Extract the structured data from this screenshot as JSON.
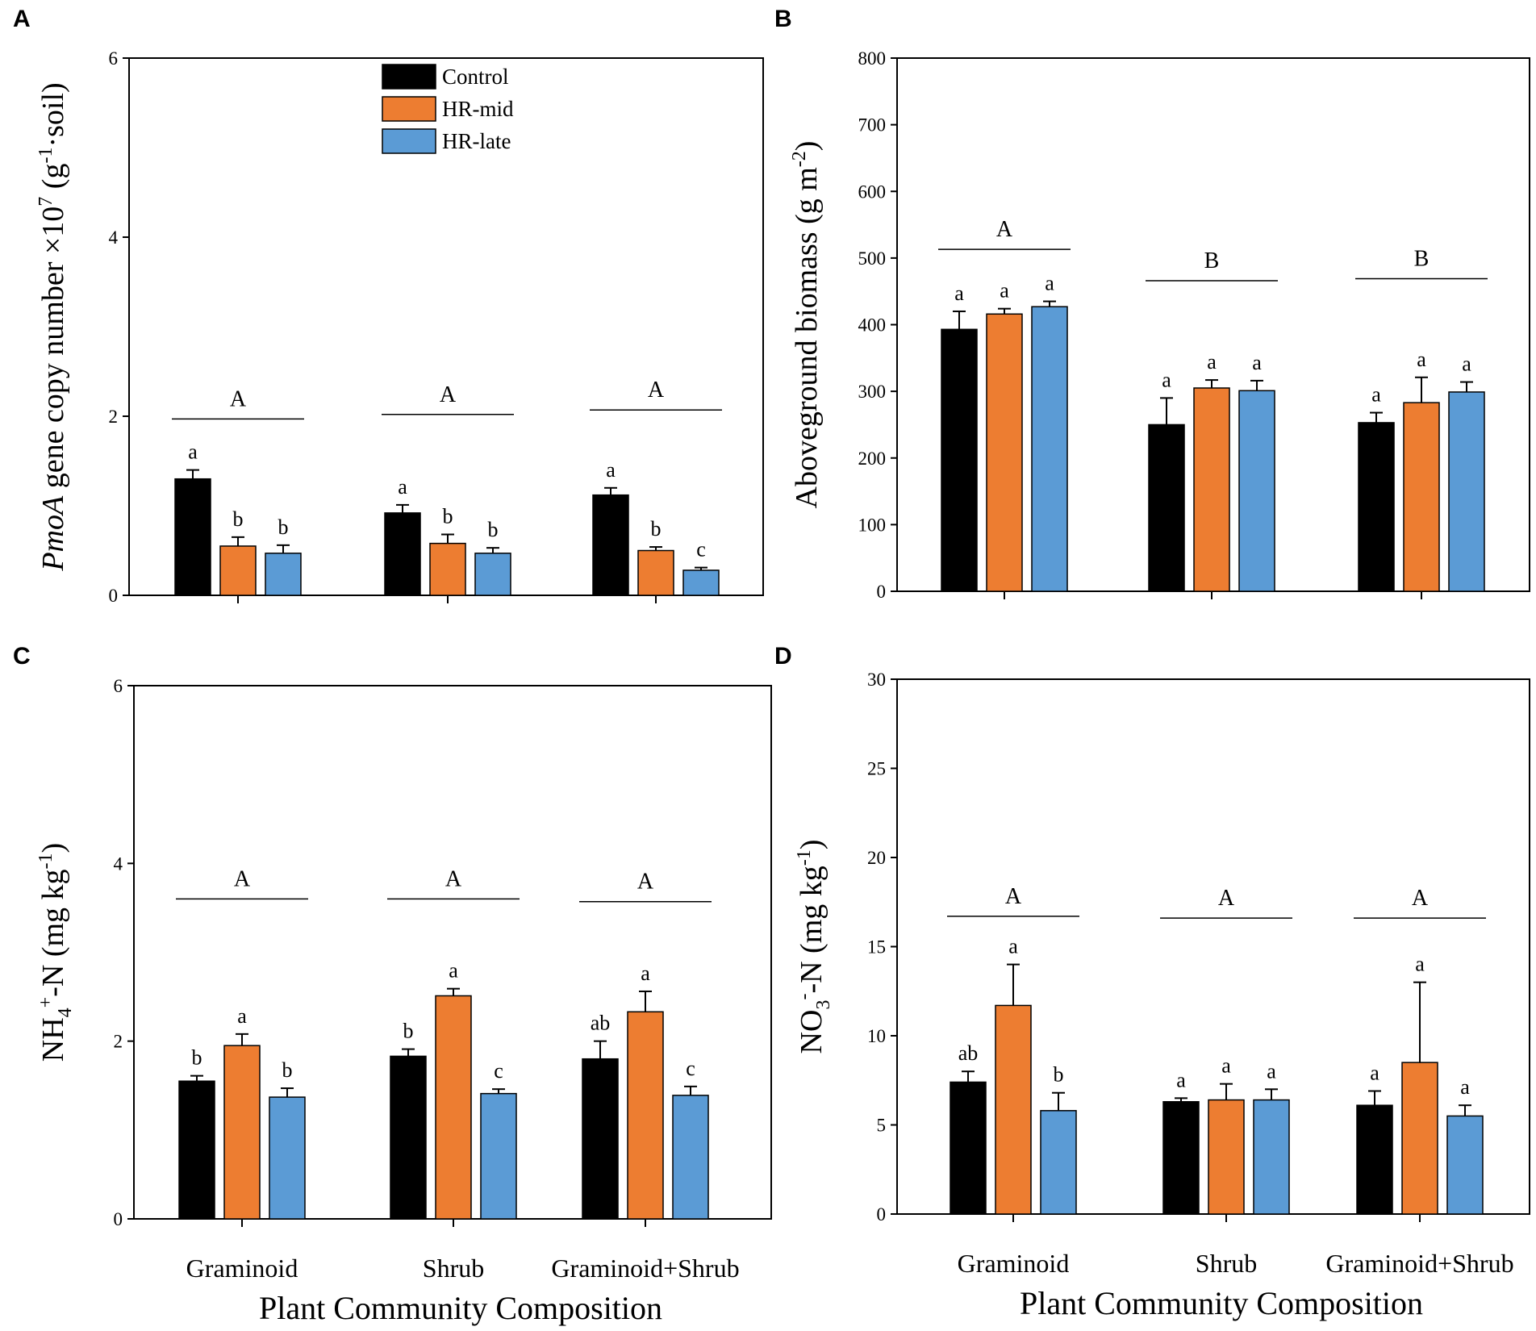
{
  "figure": {
    "legend": [
      {
        "label": "Control",
        "color": "#000000"
      },
      {
        "label": "HR-mid",
        "color": "#ED7D31"
      },
      {
        "label": "HR-late",
        "color": "#5B9BD5"
      }
    ],
    "x_axis_title": "Plant Community Composition"
  },
  "chart_data": [
    {
      "panel": "A",
      "type": "bar",
      "ylabel_parts": {
        "italic": "PmoA",
        "text1": " gene copy number ×10",
        "sup1": "7",
        "text2": " (g",
        "sup2": "-1",
        "text3": "·soil)"
      },
      "ylim": [
        0,
        6
      ],
      "yticks": [
        "0",
        "2",
        "4",
        "6"
      ],
      "categories": [
        "Graminoid",
        "Shrub",
        "Graminoid+Shrub"
      ],
      "series": [
        {
          "name": "Control",
          "values": [
            1.3,
            0.92,
            1.12
          ],
          "errors": [
            0.1,
            0.09,
            0.08
          ],
          "letters": [
            "a",
            "a",
            "a"
          ]
        },
        {
          "name": "HR-mid",
          "values": [
            0.55,
            0.58,
            0.5
          ],
          "errors": [
            0.1,
            0.1,
            0.04
          ],
          "letters": [
            "b",
            "b",
            "b"
          ]
        },
        {
          "name": "HR-late",
          "values": [
            0.47,
            0.47,
            0.28
          ],
          "errors": [
            0.09,
            0.06,
            0.03
          ],
          "letters": [
            "b",
            "b",
            "c"
          ]
        }
      ],
      "groups": [
        {
          "letter": "A",
          "y": 1.97
        },
        {
          "letter": "A",
          "y": 2.02
        },
        {
          "letter": "A",
          "y": 2.07
        }
      ],
      "show_xticklabels": false
    },
    {
      "panel": "B",
      "type": "bar",
      "ylabel_parts": {
        "text1": "Aboveground biomass (g m",
        "sup1": "-2",
        "text2": ")"
      },
      "ylim": [
        0,
        800
      ],
      "yticks": [
        "0",
        "100",
        "200",
        "300",
        "400",
        "500",
        "600",
        "700",
        "800"
      ],
      "categories": [
        "Graminoid",
        "Shrub",
        "Graminoid+Shrub"
      ],
      "series": [
        {
          "name": "Control",
          "values": [
            393,
            250,
            253
          ],
          "errors": [
            27,
            40,
            15
          ],
          "letters": [
            "a",
            "a",
            "a"
          ]
        },
        {
          "name": "HR-mid",
          "values": [
            416,
            305,
            283
          ],
          "errors": [
            8,
            12,
            38
          ],
          "letters": [
            "a",
            "a",
            "a"
          ]
        },
        {
          "name": "HR-late",
          "values": [
            427,
            301,
            299
          ],
          "errors": [
            8,
            15,
            15
          ],
          "letters": [
            "a",
            "a",
            "a"
          ]
        }
      ],
      "groups": [
        {
          "letter": "A",
          "y": 513
        },
        {
          "letter": "B",
          "y": 466
        },
        {
          "letter": "B",
          "y": 469
        }
      ],
      "show_xticklabels": false
    },
    {
      "panel": "C",
      "type": "bar",
      "ylabel_parts": {
        "text1": "NH",
        "sub1": "4",
        "sup1": "+",
        "text2": "-N (mg kg",
        "sup2": "-1",
        "text3": ")"
      },
      "ylim": [
        0,
        6
      ],
      "yticks": [
        "0",
        "2",
        "4",
        "6"
      ],
      "categories": [
        "Graminoid",
        "Shrub",
        "Graminoid+Shrub"
      ],
      "series": [
        {
          "name": "Control",
          "values": [
            1.55,
            1.83,
            1.8
          ],
          "errors": [
            0.06,
            0.08,
            0.2
          ],
          "letters": [
            "b",
            "b",
            "ab"
          ]
        },
        {
          "name": "HR-mid",
          "values": [
            1.95,
            2.51,
            2.33
          ],
          "errors": [
            0.13,
            0.08,
            0.23
          ],
          "letters": [
            "a",
            "a",
            "a"
          ]
        },
        {
          "name": "HR-late",
          "values": [
            1.37,
            1.41,
            1.39
          ],
          "errors": [
            0.1,
            0.05,
            0.1
          ],
          "letters": [
            "b",
            "c",
            "c"
          ]
        }
      ],
      "groups": [
        {
          "letter": "A",
          "y": 3.6
        },
        {
          "letter": "A",
          "y": 3.6
        },
        {
          "letter": "A",
          "y": 3.57
        }
      ],
      "show_xticklabels": true
    },
    {
      "panel": "D",
      "type": "bar",
      "ylabel_parts": {
        "text1": "NO",
        "sub1": "3",
        "sup1": "-",
        "text2": "-N (mg kg",
        "sup2": "-1",
        "text3": ")"
      },
      "ylim": [
        0,
        30
      ],
      "yticks": [
        "0",
        "5",
        "10",
        "15",
        "20",
        "25",
        "30"
      ],
      "categories": [
        "Graminoid",
        "Shrub",
        "Graminoid+Shrub"
      ],
      "series": [
        {
          "name": "Control",
          "values": [
            7.4,
            6.3,
            6.1
          ],
          "errors": [
            0.6,
            0.2,
            0.8
          ],
          "letters": [
            "ab",
            "a",
            "a"
          ]
        },
        {
          "name": "HR-mid",
          "values": [
            11.7,
            6.4,
            8.5
          ],
          "errors": [
            2.3,
            0.9,
            4.5
          ],
          "letters": [
            "a",
            "a",
            "a"
          ]
        },
        {
          "name": "HR-late",
          "values": [
            5.8,
            6.4,
            5.5
          ],
          "errors": [
            1.0,
            0.6,
            0.6
          ],
          "letters": [
            "b",
            "a",
            "a"
          ]
        }
      ],
      "groups": [
        {
          "letter": "A",
          "y": 16.7
        },
        {
          "letter": "A",
          "y": 16.6
        },
        {
          "letter": "A",
          "y": 16.6
        }
      ],
      "show_xticklabels": true
    }
  ]
}
